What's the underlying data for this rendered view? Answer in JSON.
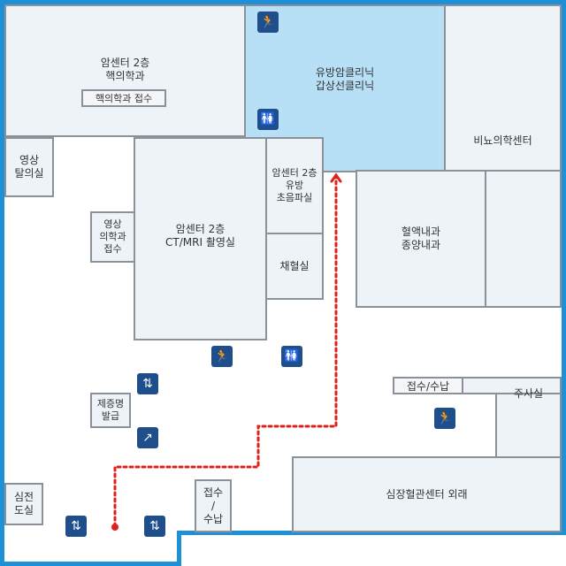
{
  "rooms": {
    "cancer_2f_nuclear": [
      "암센터 2층",
      "핵의학과"
    ],
    "nuclear_reception": "핵의학과 접수",
    "breast_thyroid": [
      "유방암클리닉",
      "갑상선클리닉"
    ],
    "urology": "비뇨의학센터",
    "imaging_room": [
      "영상",
      "탈의실"
    ],
    "breast_ultrasound": [
      "암센터 2층",
      "유방",
      "초음파실"
    ],
    "ct_mri": [
      "암센터 2층",
      "CT/MRI 촬영실"
    ],
    "imaging_reception": [
      "영상",
      "의학과",
      "접수"
    ],
    "blood_draw": "채혈실",
    "hemato_onco": [
      "혈액내과",
      "종양내과"
    ],
    "certificate": [
      "제증명",
      "발급"
    ],
    "reception_payment_right": "접수/수납",
    "injection": "주사실",
    "cardio": "심장혈관센터 외래",
    "ecg": [
      "심전",
      "도실"
    ],
    "reception_payment_bottom": [
      "접수",
      "/",
      "수납"
    ]
  },
  "icons": {
    "emergency_exit": "emergency-exit-icon",
    "restroom": "restroom-icon",
    "elevator": "elevator-icon",
    "escalator": "escalator-icon"
  },
  "colors": {
    "highlight_room": "#b7dff5",
    "room_fill": "#eef3f8",
    "route": "#e0201b",
    "icon_bg": "#1f4e8c",
    "frame": "#1e90d8"
  }
}
